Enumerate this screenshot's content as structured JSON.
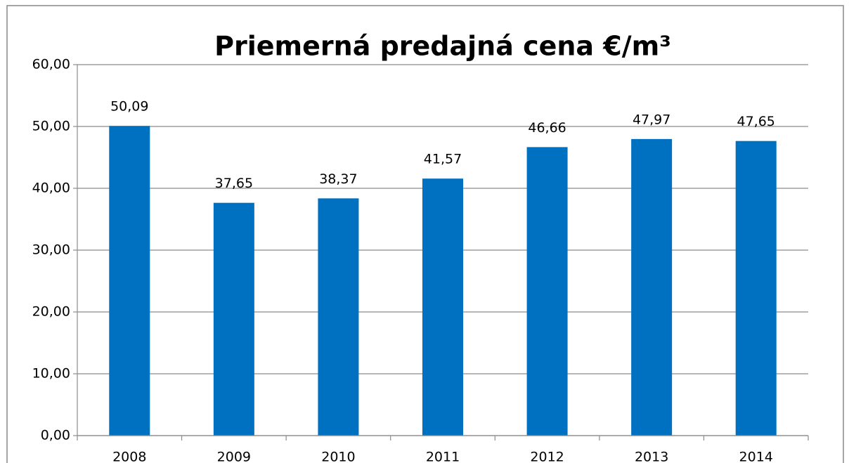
{
  "chart_data": {
    "type": "bar",
    "title": "Priemerná predajná cena €/m³",
    "categories": [
      "2008",
      "2009",
      "2010",
      "2011",
      "2012",
      "2013",
      "2014"
    ],
    "values": [
      50.09,
      37.65,
      38.37,
      41.57,
      46.66,
      47.97,
      47.65
    ],
    "value_labels": [
      "50,09",
      "37,65",
      "38,37",
      "41,57",
      "46,66",
      "47,97",
      "47,65"
    ],
    "color": "#0070c0",
    "ylim": [
      0,
      60
    ],
    "yticks": [
      {
        "value": 0,
        "label": "0,00"
      },
      {
        "value": 10,
        "label": "10,00"
      },
      {
        "value": 20,
        "label": "20,00"
      },
      {
        "value": 30,
        "label": "30,00"
      },
      {
        "value": 40,
        "label": "40,00"
      },
      {
        "value": 50,
        "label": "50,00"
      },
      {
        "value": 60,
        "label": "60,00"
      }
    ],
    "grid": true
  }
}
